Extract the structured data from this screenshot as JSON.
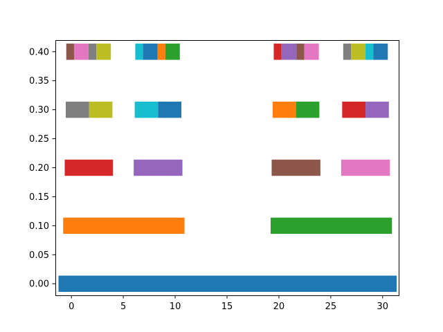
{
  "chart_data": {
    "type": "bar",
    "orientation": "horizontal",
    "title": "",
    "xlabel": "",
    "ylabel": "",
    "xlim": [
      -1.55,
      31.55
    ],
    "ylim": [
      -0.02,
      0.42
    ],
    "grid": false,
    "legend": "none",
    "bar_height": 0.028,
    "x_ticks": [
      {
        "value": 0,
        "label": "0"
      },
      {
        "value": 5,
        "label": "5"
      },
      {
        "value": 10,
        "label": "10"
      },
      {
        "value": 15,
        "label": "15"
      },
      {
        "value": 20,
        "label": "20"
      },
      {
        "value": 25,
        "label": "25"
      },
      {
        "value": 30,
        "label": "30"
      }
    ],
    "y_ticks": [
      {
        "value": 0.0,
        "label": "0.00"
      },
      {
        "value": 0.05,
        "label": "0.05"
      },
      {
        "value": 0.1,
        "label": "0.10"
      },
      {
        "value": 0.15,
        "label": "0.15"
      },
      {
        "value": 0.2,
        "label": "0.20"
      },
      {
        "value": 0.25,
        "label": "0.25"
      },
      {
        "value": 0.3,
        "label": "0.30"
      },
      {
        "value": 0.35,
        "label": "0.35"
      },
      {
        "value": 0.4,
        "label": "0.40"
      }
    ],
    "levels": [
      {
        "y": 0.0,
        "segments": [
          {
            "start": -1.25,
            "end": 31.35,
            "color": "#1f77b4"
          }
        ]
      },
      {
        "y": 0.1,
        "segments": [
          {
            "start": -0.8,
            "end": 10.9,
            "color": "#ff7f0e"
          },
          {
            "start": 19.2,
            "end": 30.9,
            "color": "#2ca02c"
          }
        ]
      },
      {
        "y": 0.2,
        "segments": [
          {
            "start": -0.65,
            "end": 4.0,
            "color": "#d62728"
          },
          {
            "start": 6.0,
            "end": 10.7,
            "color": "#9467bd"
          },
          {
            "start": 19.3,
            "end": 24.0,
            "color": "#8c564b"
          },
          {
            "start": 26.0,
            "end": 30.7,
            "color": "#e377c2"
          }
        ]
      },
      {
        "y": 0.3,
        "segments": [
          {
            "start": -0.55,
            "end": 1.7,
            "color": "#7f7f7f"
          },
          {
            "start": 1.7,
            "end": 3.95,
            "color": "#bcbd22"
          },
          {
            "start": 6.1,
            "end": 8.35,
            "color": "#17becf"
          },
          {
            "start": 8.35,
            "end": 10.6,
            "color": "#1f77b4"
          },
          {
            "start": 19.4,
            "end": 21.65,
            "color": "#ff7f0e"
          },
          {
            "start": 21.65,
            "end": 23.9,
            "color": "#2ca02c"
          },
          {
            "start": 26.1,
            "end": 28.35,
            "color": "#d62728"
          },
          {
            "start": 28.35,
            "end": 30.6,
            "color": "#9467bd"
          }
        ]
      },
      {
        "y": 0.4,
        "segments": [
          {
            "start": -0.5,
            "end": 0.25,
            "color": "#8c564b"
          },
          {
            "start": 0.25,
            "end": 1.65,
            "color": "#e377c2"
          },
          {
            "start": 1.65,
            "end": 2.4,
            "color": "#7f7f7f"
          },
          {
            "start": 2.4,
            "end": 3.8,
            "color": "#bcbd22"
          },
          {
            "start": 6.15,
            "end": 6.9,
            "color": "#17becf"
          },
          {
            "start": 6.9,
            "end": 8.3,
            "color": "#1f77b4"
          },
          {
            "start": 8.3,
            "end": 9.05,
            "color": "#ff7f0e"
          },
          {
            "start": 9.05,
            "end": 10.45,
            "color": "#2ca02c"
          },
          {
            "start": 19.5,
            "end": 20.25,
            "color": "#d62728"
          },
          {
            "start": 20.25,
            "end": 21.7,
            "color": "#9467bd"
          },
          {
            "start": 21.7,
            "end": 22.45,
            "color": "#8c564b"
          },
          {
            "start": 22.45,
            "end": 23.85,
            "color": "#e377c2"
          },
          {
            "start": 26.2,
            "end": 26.95,
            "color": "#7f7f7f"
          },
          {
            "start": 26.95,
            "end": 28.35,
            "color": "#bcbd22"
          },
          {
            "start": 28.35,
            "end": 29.1,
            "color": "#17becf"
          },
          {
            "start": 29.1,
            "end": 30.5,
            "color": "#1f77b4"
          }
        ]
      }
    ]
  }
}
